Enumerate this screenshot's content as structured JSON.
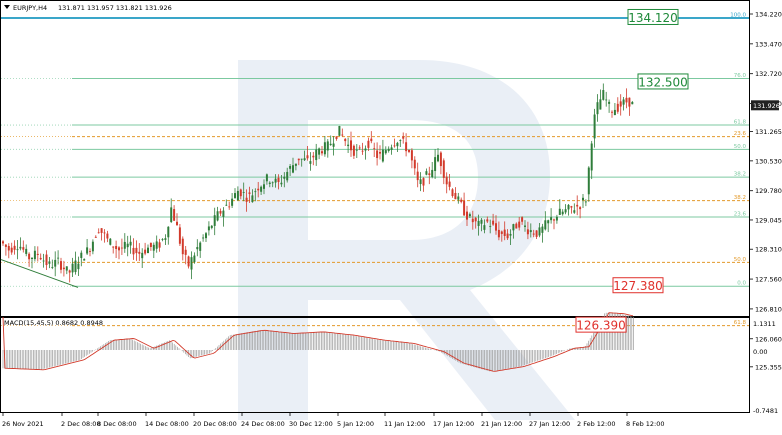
{
  "header": {
    "symbol": "EURJPY,H4",
    "ohlc": "131.871 131.957 131.821 131.926"
  },
  "macd": {
    "label": "MACD(15,45,5) 0.8682 0.8948",
    "ticks": [
      "1.1311",
      "0.00",
      "-0.7481"
    ]
  },
  "chart_data": {
    "type": "candlestick",
    "symbol": "EURJPY",
    "timeframe": "H4",
    "price_axis": {
      "ticks": [
        "134.220",
        "133.470",
        "132.720",
        "131.970",
        "131.265",
        "130.530",
        "129.780",
        "129.045",
        "128.310",
        "127.560",
        "126.810",
        "126.060",
        "125.355"
      ],
      "range": [
        124.9,
        134.4
      ]
    },
    "time_axis": {
      "labels": [
        "26 Nov 2021",
        "2 Dec 08:00",
        "8 Dec 08:00",
        "14 Dec 08:00",
        "20 Dec 08:00",
        "24 Dec 08:00",
        "30 Dec 12:00",
        "5 Jan 12:00",
        "11 Jan 12:00",
        "17 Jan 12:00",
        "21 Jan 12:00",
        "27 Jan 12:00",
        "2 Feb 12:00",
        "8 Feb 12:00"
      ]
    },
    "current_price": "131.926",
    "price_path": [
      [
        0,
        128.55
      ],
      [
        10,
        128.3
      ],
      [
        20,
        128.45
      ],
      [
        30,
        128.1
      ],
      [
        40,
        128.2
      ],
      [
        50,
        127.9
      ],
      [
        60,
        128.0
      ],
      [
        70,
        127.7
      ],
      [
        80,
        128.05
      ],
      [
        90,
        128.3
      ],
      [
        100,
        128.85
      ],
      [
        110,
        128.5
      ],
      [
        120,
        128.3
      ],
      [
        130,
        128.4
      ],
      [
        140,
        128.2
      ],
      [
        150,
        128.35
      ],
      [
        160,
        128.4
      ],
      [
        168,
        128.7
      ],
      [
        172,
        129.4
      ],
      [
        178,
        128.9
      ],
      [
        184,
        128.2
      ],
      [
        190,
        127.9
      ],
      [
        198,
        128.3
      ],
      [
        210,
        128.8
      ],
      [
        220,
        129.2
      ],
      [
        230,
        129.45
      ],
      [
        240,
        129.8
      ],
      [
        250,
        129.6
      ],
      [
        260,
        129.9
      ],
      [
        270,
        130.1
      ],
      [
        280,
        129.95
      ],
      [
        290,
        130.3
      ],
      [
        300,
        130.6
      ],
      [
        310,
        130.5
      ],
      [
        320,
        130.8
      ],
      [
        330,
        130.9
      ],
      [
        340,
        131.3
      ],
      [
        350,
        130.9
      ],
      [
        360,
        130.7
      ],
      [
        370,
        131.0
      ],
      [
        380,
        130.6
      ],
      [
        390,
        130.9
      ],
      [
        400,
        131.1
      ],
      [
        410,
        130.8
      ],
      [
        420,
        129.9
      ],
      [
        430,
        130.2
      ],
      [
        440,
        130.7
      ],
      [
        448,
        130.0
      ],
      [
        460,
        129.5
      ],
      [
        470,
        129.1
      ],
      [
        480,
        128.9
      ],
      [
        490,
        129.0
      ],
      [
        500,
        128.7
      ],
      [
        510,
        128.65
      ],
      [
        520,
        129.0
      ],
      [
        530,
        128.8
      ],
      [
        540,
        128.7
      ],
      [
        550,
        129.0
      ],
      [
        560,
        129.2
      ],
      [
        570,
        129.3
      ],
      [
        580,
        129.4
      ],
      [
        588,
        129.6
      ],
      [
        592,
        130.9
      ],
      [
        596,
        131.6
      ],
      [
        600,
        132.0
      ],
      [
        605,
        132.2
      ],
      [
        612,
        131.8
      ],
      [
        620,
        131.9
      ],
      [
        630,
        132.05
      ],
      [
        634,
        131.93
      ]
    ],
    "levels": [
      {
        "label": "100.0",
        "value": 134.12,
        "color": "#3aa6c9"
      },
      {
        "label": "76.0",
        "value": 132.6,
        "color": "#7cc9a0"
      },
      {
        "label": "61.8",
        "value": 131.43,
        "color": "#7cc9a0"
      },
      {
        "label": "23.6",
        "value": 131.14,
        "color": "#e39a2b"
      },
      {
        "label": "50.0",
        "value": 130.82,
        "color": "#7cc9a0"
      },
      {
        "label": "38.2",
        "value": 130.12,
        "color": "#7cc9a0"
      },
      {
        "label": "38.2",
        "value": 129.53,
        "color": "#e39a2b"
      },
      {
        "label": "23.6",
        "value": 129.12,
        "color": "#7cc9a0"
      },
      {
        "label": "50.0",
        "value": 127.98,
        "color": "#e39a2b"
      },
      {
        "label": "0.0",
        "value": 127.38,
        "color": "#7cc9a0"
      },
      {
        "label": "61.8",
        "value": 126.39,
        "color": "#e39a2b"
      }
    ],
    "callouts": [
      {
        "text": "134.120",
        "value": 134.12,
        "color": "#1f8a3a"
      },
      {
        "text": "132.500",
        "value": 132.5,
        "color": "#1f8a3a"
      },
      {
        "text": "127.380",
        "value": 127.38,
        "color": "#e0312c"
      },
      {
        "text": "126.390",
        "value": 126.39,
        "color": "#e0312c"
      }
    ],
    "macd_histogram_shape": [
      [
        0,
        -0.55
      ],
      [
        40,
        -0.6
      ],
      [
        80,
        -0.3
      ],
      [
        110,
        0.3
      ],
      [
        130,
        0.35
      ],
      [
        150,
        0.05
      ],
      [
        170,
        0.3
      ],
      [
        190,
        -0.25
      ],
      [
        210,
        -0.1
      ],
      [
        230,
        0.45
      ],
      [
        260,
        0.6
      ],
      [
        290,
        0.5
      ],
      [
        320,
        0.55
      ],
      [
        350,
        0.45
      ],
      [
        380,
        0.3
      ],
      [
        410,
        0.2
      ],
      [
        440,
        -0.05
      ],
      [
        460,
        -0.4
      ],
      [
        490,
        -0.65
      ],
      [
        520,
        -0.5
      ],
      [
        550,
        -0.2
      ],
      [
        570,
        0.05
      ],
      [
        585,
        0.1
      ],
      [
        595,
        0.6
      ],
      [
        605,
        1.13
      ],
      [
        620,
        1.1
      ],
      [
        634,
        1.0
      ]
    ],
    "colors": {
      "up": "#2f7d3a",
      "down": "#d23a2b",
      "signal": "#d23a2b",
      "histogram": "#9a9a9a"
    }
  }
}
